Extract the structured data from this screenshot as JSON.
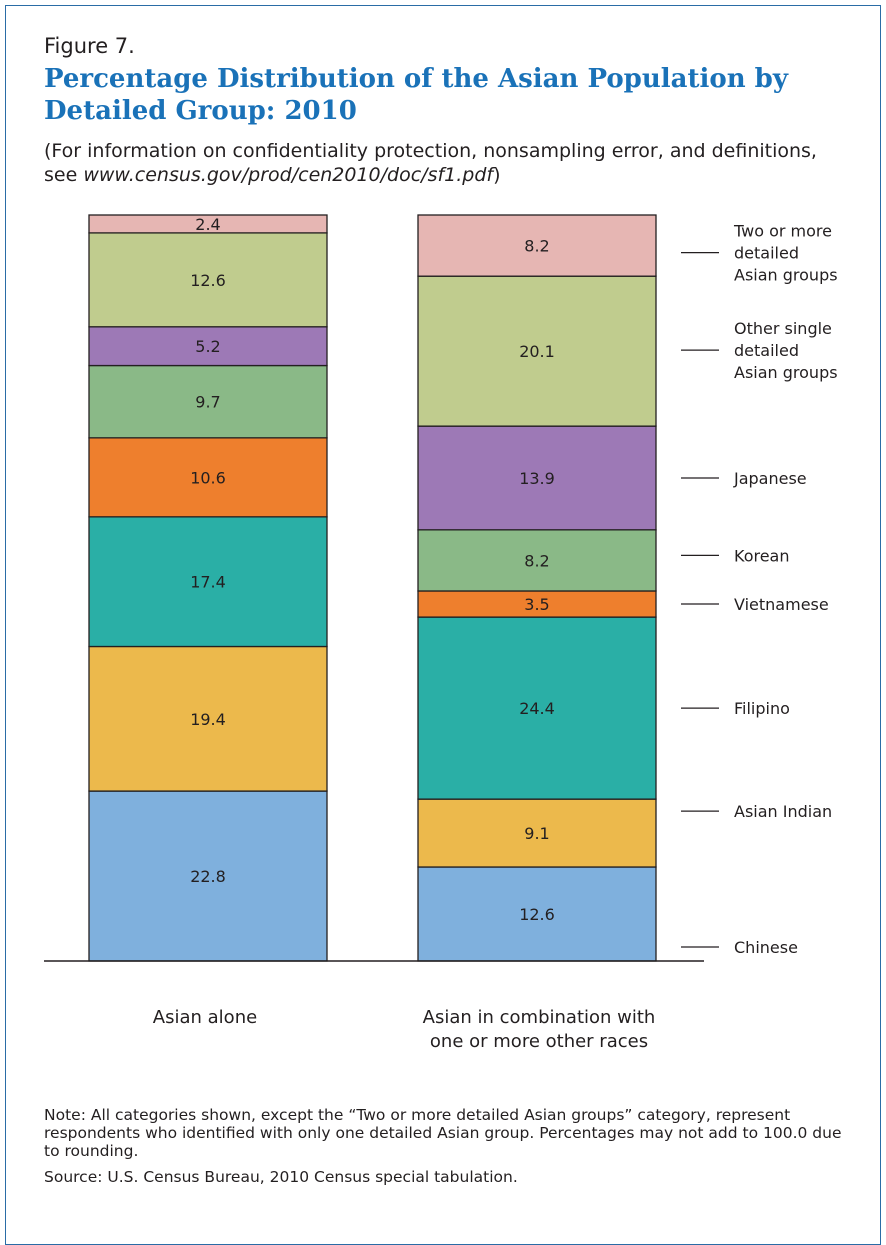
{
  "figure": {
    "label": "Figure 7.",
    "title_line1": "Percentage Distribution of the Asian Population by",
    "title_line2": "Detailed Group: 2010",
    "subtitle_text": "(For information on confidentiality protection, nonsampling error, and definitions, see ",
    "subtitle_link": "www.census.gov/prod/cen2010/doc/sf1.pdf",
    "subtitle_close": ")",
    "note": "Note: All categories shown, except the “Two or more detailed Asian groups” category, represent respondents who identified with only one detailed Asian group. Percentages may not add to 100.0 due to rounding.",
    "source": "Source: U.S. Census Bureau, 2010 Census special tabulation."
  },
  "colors": {
    "title": "#1a72b8",
    "frame": "#2a6ca6",
    "Chinese": "#7fb0dd",
    "Asian Indian": "#ecb94c",
    "Filipino": "#2aafa6",
    "Vietnamese": "#ee7f2d",
    "Korean": "#8ab987",
    "Japanese": "#9d79b6",
    "Other single detailed Asian groups": "#c0cc8e",
    "Two or more detailed Asian groups": "#e6b6b3"
  },
  "chart_data": {
    "type": "bar",
    "stacked": true,
    "unit": "percent",
    "categories": [
      "Asian alone",
      "Asian in combination with one or more other races"
    ],
    "category_lines": [
      [
        "Asian alone"
      ],
      [
        "Asian in combination with",
        "one or more other races"
      ]
    ],
    "series": [
      {
        "name": "Chinese",
        "values": [
          22.8,
          12.6
        ]
      },
      {
        "name": "Asian Indian",
        "values": [
          19.4,
          9.1
        ]
      },
      {
        "name": "Filipino",
        "values": [
          17.4,
          24.4
        ]
      },
      {
        "name": "Vietnamese",
        "values": [
          10.6,
          3.5
        ]
      },
      {
        "name": "Korean",
        "values": [
          9.7,
          8.2
        ]
      },
      {
        "name": "Japanese",
        "values": [
          5.2,
          13.9
        ]
      },
      {
        "name": "Other single detailed Asian groups",
        "values": [
          12.6,
          20.1
        ]
      },
      {
        "name": "Two or more detailed Asian groups",
        "values": [
          2.4,
          8.2
        ]
      }
    ],
    "legend_lines": {
      "Chinese": [
        "Chinese"
      ],
      "Asian Indian": [
        "Asian Indian"
      ],
      "Filipino": [
        "Filipino"
      ],
      "Vietnamese": [
        "Vietnamese"
      ],
      "Korean": [
        "Korean"
      ],
      "Japanese": [
        "Japanese"
      ],
      "Other single detailed Asian groups": [
        "Other single",
        "detailed",
        "Asian groups"
      ],
      "Two or more detailed Asian groups": [
        "Two or more",
        "detailed",
        "Asian groups"
      ]
    },
    "legend_placement": "right",
    "ylim": [
      0,
      100
    ],
    "grid": false
  }
}
